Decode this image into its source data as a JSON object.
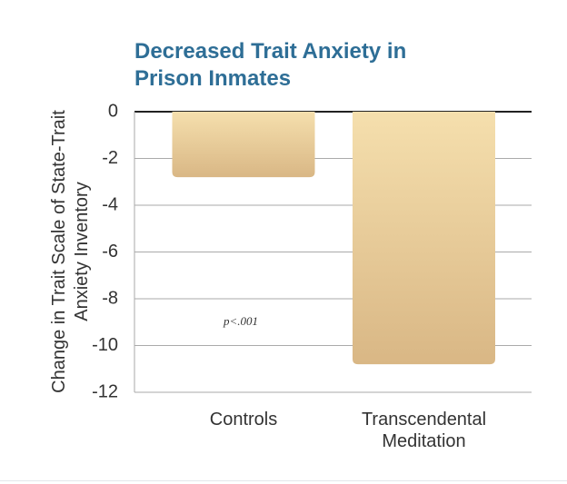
{
  "chart_data": {
    "type": "bar",
    "title": "Decreased Trait Anxiety in Prison Inmates",
    "y_label": "Change in Trait Scale of State-Trait Anxiety Inventory",
    "categories": [
      "Controls",
      "Transcendental Meditation"
    ],
    "values": [
      -2.8,
      -10.8
    ],
    "ylim": [
      -12,
      0
    ],
    "yticks": [
      0,
      -2,
      -4,
      -6,
      -8,
      -10,
      -12
    ],
    "grid": true,
    "annotation": "p<.001"
  }
}
